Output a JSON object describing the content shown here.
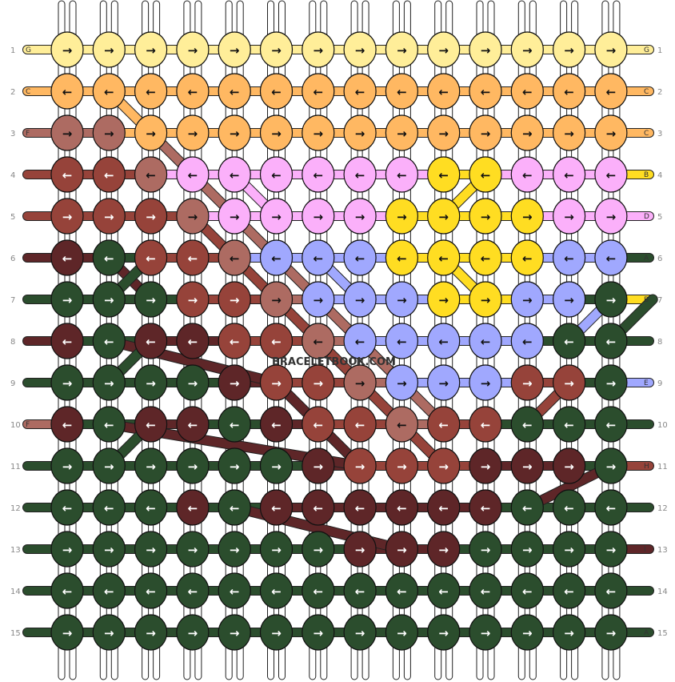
{
  "watermark": "BRACELETBOOK.COM",
  "colors": {
    "G": "#FFEE99",
    "C": "#FFB862",
    "F": "#AD6B62",
    "B": "#FFDD22",
    "D": "#FBB0FA",
    "A": "#2B4D2D",
    "E": "#A0A8FE",
    "H": "#96433A",
    "I": "#5E2628",
    "thread_white": "#FFFFFF"
  },
  "rows": [
    "1",
    "2",
    "3",
    "4",
    "5",
    "6",
    "7",
    "8",
    "9",
    "10",
    "11",
    "12",
    "13",
    "14",
    "15"
  ],
  "left_labels": [
    "G",
    "C",
    "F",
    "",
    "",
    "",
    "",
    "",
    "",
    "F",
    "",
    "",
    "",
    "",
    ""
  ],
  "right_labels": [
    "G",
    "C",
    "C",
    "B",
    "D",
    "A",
    "B",
    "",
    "E",
    "",
    "H",
    "",
    "I",
    "",
    "A"
  ],
  "knot_colors": [
    "GGGGGGGGGGGGGG",
    "CCCCCCCCCCCCCC",
    "FFCCCCCCCCCCCC",
    "HHFDDDDDDBBDDD",
    "HHHFDDDDBBBBDD",
    "IAHHFEEEBBBBEE",
    "AAAHHFEEEBBEEA",
    "IAIIHHFEEEEEAA",
    "AAAAIHHFEEEHHA",
    "IAIIAIHHFHHAAA",
    "AAAAAAIHHHIIIA",
    "AAAIAIIIIIIAAA",
    "AAAAAAAIIIAAAA",
    "AAAAAAAAAAAAAA",
    "AAAAAAAAAAAAAA"
  ],
  "knot_arrows": [
    "RRRRRRRRRRRRRR",
    "LLLLLLLLLLLLLL",
    "RRRRRRRRRRRRRR",
    "LLLLLLLLLLLLLL",
    "RRRRRRRRRRRRRR",
    "LLLLLLLLLLLLLL",
    "RRRRRRRRRRRRRR",
    "LLLLLLLLLLLLLL",
    "RRRRRRRRRRRRRR",
    "LLLLLLLLLLLLLL",
    "RRRRRRRRRRRRRR",
    "LLLLLLLLLLLLLL",
    "RRRRRRRRRRRRRR",
    "LLLLLLLLLLLLLL",
    "RRRRRRRRRRRRRR"
  ],
  "diagonals": [
    {
      "color": "C",
      "path": [
        [
          1,
          2
        ],
        [
          2,
          3
        ]
      ]
    },
    {
      "color": "F",
      "path": [
        [
          2,
          3
        ],
        [
          3,
          4
        ],
        [
          4,
          5
        ],
        [
          5,
          6
        ],
        [
          6,
          7
        ],
        [
          7,
          8
        ],
        [
          8,
          9
        ],
        [
          9,
          10
        ]
      ]
    },
    {
      "color": "D",
      "path": [
        [
          4,
          4
        ],
        [
          5,
          5
        ]
      ]
    },
    {
      "color": "E",
      "path": [
        [
          6,
          6
        ],
        [
          7,
          7
        ]
      ]
    },
    {
      "color": "E",
      "path": [
        [
          13,
          7
        ],
        [
          12,
          8
        ]
      ]
    },
    {
      "color": "B",
      "path": [
        [
          10,
          4
        ],
        [
          9,
          5
        ]
      ]
    },
    {
      "color": "B",
      "path": [
        [
          9,
          6
        ],
        [
          10,
          7
        ]
      ]
    },
    {
      "color": "H",
      "path": [
        [
          3,
          5
        ],
        [
          4,
          6
        ],
        [
          5,
          7
        ],
        [
          6,
          8
        ],
        [
          7,
          9
        ],
        [
          8,
          10
        ],
        [
          9,
          11
        ]
      ]
    },
    {
      "color": "H",
      "path": [
        [
          12,
          9
        ],
        [
          11,
          10
        ]
      ]
    },
    {
      "color": "I",
      "path": [
        [
          1,
          6
        ],
        [
          2,
          7
        ]
      ]
    },
    {
      "color": "I",
      "path": [
        [
          1,
          8
        ],
        [
          5,
          9
        ],
        [
          6,
          10
        ],
        [
          7,
          11
        ]
      ]
    },
    {
      "color": "I",
      "path": [
        [
          1,
          10
        ],
        [
          7,
          11
        ]
      ]
    },
    {
      "color": "I",
      "path": [
        [
          13,
          11
        ],
        [
          11,
          12
        ]
      ]
    },
    {
      "color": "I",
      "path": [
        [
          4,
          12
        ],
        [
          8,
          13
        ]
      ]
    },
    {
      "color": "A",
      "path": [
        [
          2,
          6
        ],
        [
          1,
          7
        ]
      ]
    },
    {
      "color": "A",
      "path": [
        [
          2,
          8
        ],
        [
          1,
          9
        ]
      ]
    },
    {
      "color": "A",
      "path": [
        [
          2,
          10
        ],
        [
          1,
          11
        ]
      ]
    },
    {
      "color": "A",
      "path": [
        [
          14,
          7
        ],
        [
          13,
          8
        ]
      ]
    }
  ]
}
